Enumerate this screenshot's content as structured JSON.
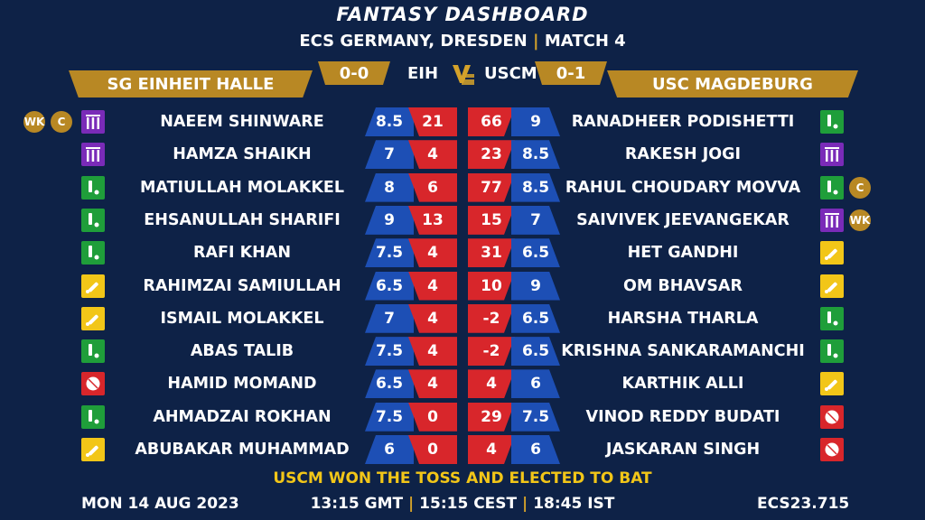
{
  "title": "FANTASY DASHBOARD",
  "subtitle": {
    "event": "ECS GERMANY, DRESDEN",
    "sep": "|",
    "match": "MATCH 4"
  },
  "teams": {
    "left": {
      "name": "SG EINHEIT HALLE",
      "abbr": "EIH",
      "score": "0-0"
    },
    "right": {
      "name": "USC MAGDEBURG",
      "abbr": "USCM",
      "score": "0-1"
    }
  },
  "vs_icon": "vs-logo-icon",
  "colors": {
    "background": "#0e2247",
    "gold": "#b88824",
    "credits": "#1d4fb5",
    "points": "#d8262b",
    "batter": "#f2c618",
    "bowler": "#d8262b",
    "allrounder": "#1f9e3a",
    "keeper": "#7a2bb8"
  },
  "players": [
    {
      "left": {
        "name": "NAEEM SHINWARE",
        "role": "wk",
        "badges": [
          "WK",
          "C"
        ],
        "credits": "8.5",
        "points": "21"
      },
      "right": {
        "name": "RANADHEER PODISHETTI",
        "role": "ar",
        "badges": [],
        "points": "66",
        "credits": "9"
      }
    },
    {
      "left": {
        "name": "HAMZA SHAIKH",
        "role": "wk",
        "badges": [],
        "credits": "7",
        "points": "4"
      },
      "right": {
        "name": "RAKESH JOGI",
        "role": "wk",
        "badges": [],
        "points": "23",
        "credits": "8.5"
      }
    },
    {
      "left": {
        "name": "MATIULLAH MOLAKKEL",
        "role": "ar",
        "badges": [],
        "credits": "8",
        "points": "6"
      },
      "right": {
        "name": "RAHUL CHOUDARY MOVVA",
        "role": "ar",
        "badges": [
          "C"
        ],
        "points": "77",
        "credits": "8.5"
      }
    },
    {
      "left": {
        "name": "EHSANULLAH SHARIFI",
        "role": "ar",
        "badges": [],
        "credits": "9",
        "points": "13"
      },
      "right": {
        "name": "SAIVIVEK JEEVANGEKAR",
        "role": "wk",
        "badges": [
          "WK"
        ],
        "points": "15",
        "credits": "7"
      }
    },
    {
      "left": {
        "name": "RAFI KHAN",
        "role": "ar",
        "badges": [],
        "credits": "7.5",
        "points": "4"
      },
      "right": {
        "name": "HET GANDHI",
        "role": "bat",
        "badges": [],
        "points": "31",
        "credits": "6.5"
      }
    },
    {
      "left": {
        "name": "RAHIMZAI SAMIULLAH",
        "role": "bat",
        "badges": [],
        "credits": "6.5",
        "points": "4"
      },
      "right": {
        "name": "OM BHAVSAR",
        "role": "bat",
        "badges": [],
        "points": "10",
        "credits": "9"
      }
    },
    {
      "left": {
        "name": "ISMAIL MOLAKKEL",
        "role": "bat",
        "badges": [],
        "credits": "7",
        "points": "4"
      },
      "right": {
        "name": "HARSHA THARLA",
        "role": "ar",
        "badges": [],
        "points": "-2",
        "credits": "6.5"
      }
    },
    {
      "left": {
        "name": "ABAS TALIB",
        "role": "ar",
        "badges": [],
        "credits": "7.5",
        "points": "4"
      },
      "right": {
        "name": "KRISHNA SANKARAMANCHI",
        "role": "ar",
        "badges": [],
        "points": "-2",
        "credits": "6.5"
      }
    },
    {
      "left": {
        "name": "HAMID MOMAND",
        "role": "bowl",
        "badges": [],
        "credits": "6.5",
        "points": "4"
      },
      "right": {
        "name": "KARTHIK ALLI",
        "role": "bat",
        "badges": [],
        "points": "4",
        "credits": "6"
      }
    },
    {
      "left": {
        "name": "AHMADZAI ROKHAN",
        "role": "ar",
        "badges": [],
        "credits": "7.5",
        "points": "0"
      },
      "right": {
        "name": "VINOD REDDY BUDATI",
        "role": "bowl",
        "badges": [],
        "points": "29",
        "credits": "7.5"
      }
    },
    {
      "left": {
        "name": "ABUBAKAR MUHAMMAD",
        "role": "bat",
        "badges": [],
        "credits": "6",
        "points": "0"
      },
      "right": {
        "name": "JASKARAN SINGH",
        "role": "bowl",
        "badges": [],
        "points": "4",
        "credits": "6"
      }
    }
  ],
  "toss": "USCM WON THE TOSS AND ELECTED TO BAT",
  "footer": {
    "date": "MON 14 AUG 2023",
    "gmt": "13:15 GMT",
    "cest": "15:15 CEST",
    "ist": "18:45 IST",
    "sep": "|",
    "code": "ECS23.715"
  }
}
